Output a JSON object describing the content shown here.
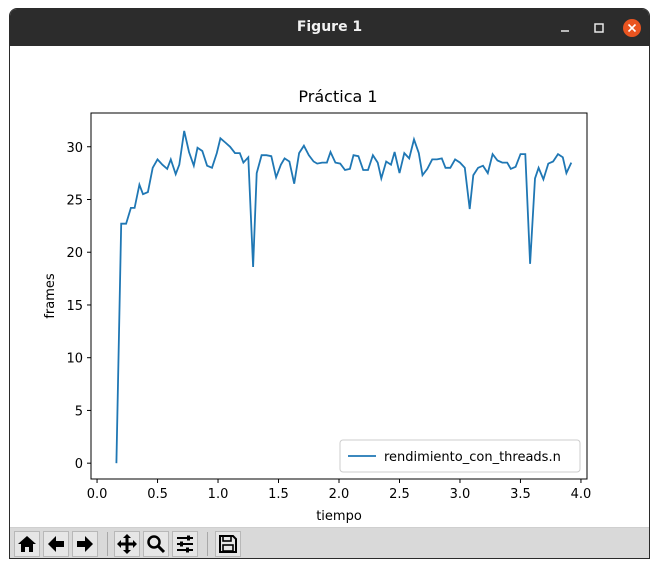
{
  "window": {
    "title": "Figure 1"
  },
  "toolbar": {
    "buttons": [
      {
        "name": "home-icon",
        "tooltip": ""
      },
      {
        "name": "back-arrow-icon",
        "tooltip": ""
      },
      {
        "name": "forward-arrow-icon",
        "tooltip": ""
      },
      {
        "name": "pan-move-icon",
        "tooltip": ""
      },
      {
        "name": "zoom-magnifier-icon",
        "tooltip": ""
      },
      {
        "name": "subplots-config-icon",
        "tooltip": ""
      },
      {
        "name": "save-floppy-icon",
        "tooltip": ""
      }
    ]
  },
  "colors": {
    "line": "#1f77b4",
    "titlebar": "#2c2c2c",
    "close": "#e95420",
    "toolbar": "#d9d9d9"
  },
  "chart_data": {
    "type": "line",
    "title": "Práctica 1",
    "xlabel": "tiempo",
    "ylabel": "frames",
    "xlim": [
      -0.05,
      4.05
    ],
    "ylim": [
      -1.5,
      33.2
    ],
    "xticks": [
      0.0,
      0.5,
      1.0,
      1.5,
      2.0,
      2.5,
      3.0,
      3.5,
      4.0
    ],
    "xtick_labels": [
      "0.0",
      "0.5",
      "1.0",
      "1.5",
      "2.0",
      "2.5",
      "3.0",
      "3.5",
      "4.0"
    ],
    "yticks": [
      0,
      5,
      10,
      15,
      20,
      25,
      30
    ],
    "ytick_labels": [
      "0",
      "5",
      "10",
      "15",
      "20",
      "25",
      "30"
    ],
    "grid": false,
    "legend_position": "lower-right",
    "series": [
      {
        "name": "rendimiento_con_threads.n",
        "color": "#1f77b4",
        "x": [
          0.16,
          0.2,
          0.24,
          0.28,
          0.31,
          0.35,
          0.38,
          0.42,
          0.46,
          0.5,
          0.54,
          0.58,
          0.61,
          0.65,
          0.68,
          0.72,
          0.76,
          0.8,
          0.83,
          0.87,
          0.91,
          0.95,
          0.99,
          1.02,
          1.06,
          1.1,
          1.14,
          1.18,
          1.21,
          1.25,
          1.29,
          1.32,
          1.36,
          1.4,
          1.44,
          1.48,
          1.52,
          1.55,
          1.59,
          1.63,
          1.67,
          1.71,
          1.75,
          1.79,
          1.82,
          1.86,
          1.9,
          1.93,
          1.97,
          2.01,
          2.05,
          2.09,
          2.12,
          2.16,
          2.2,
          2.24,
          2.28,
          2.32,
          2.35,
          2.39,
          2.43,
          2.46,
          2.5,
          2.54,
          2.58,
          2.62,
          2.66,
          2.69,
          2.73,
          2.77,
          2.81,
          2.85,
          2.88,
          2.92,
          2.96,
          3.0,
          3.04,
          3.08,
          3.11,
          3.15,
          3.19,
          3.23,
          3.27,
          3.31,
          3.35,
          3.39,
          3.42,
          3.46,
          3.5,
          3.54,
          3.58,
          3.62,
          3.65,
          3.69,
          3.73,
          3.77,
          3.81,
          3.85,
          3.88,
          3.92
        ],
        "y": [
          0.0,
          22.7,
          22.7,
          24.2,
          24.2,
          26.4,
          25.5,
          25.7,
          28.0,
          28.8,
          28.3,
          27.9,
          28.8,
          27.4,
          28.3,
          31.5,
          29.5,
          28.2,
          29.9,
          29.6,
          28.2,
          28.0,
          29.4,
          30.8,
          30.4,
          30.0,
          29.4,
          29.4,
          28.5,
          29.0,
          18.6,
          27.5,
          29.2,
          29.2,
          29.1,
          27.1,
          28.3,
          28.9,
          28.6,
          26.5,
          29.4,
          30.1,
          29.2,
          28.6,
          28.4,
          28.5,
          28.5,
          29.5,
          28.5,
          28.4,
          27.8,
          27.9,
          29.2,
          29.1,
          27.8,
          27.8,
          29.2,
          28.5,
          27.0,
          28.6,
          28.3,
          29.5,
          27.5,
          29.4,
          28.9,
          30.7,
          29.4,
          27.3,
          27.9,
          28.8,
          28.8,
          28.9,
          28.0,
          28.0,
          28.8,
          28.5,
          28.0,
          24.1,
          27.3,
          28.0,
          28.2,
          27.5,
          29.3,
          28.7,
          28.5,
          28.5,
          27.9,
          28.1,
          29.3,
          29.3,
          18.9,
          27.0,
          28.0,
          26.9,
          28.4,
          28.6,
          29.3,
          29.0,
          27.5,
          28.5
        ]
      }
    ]
  }
}
